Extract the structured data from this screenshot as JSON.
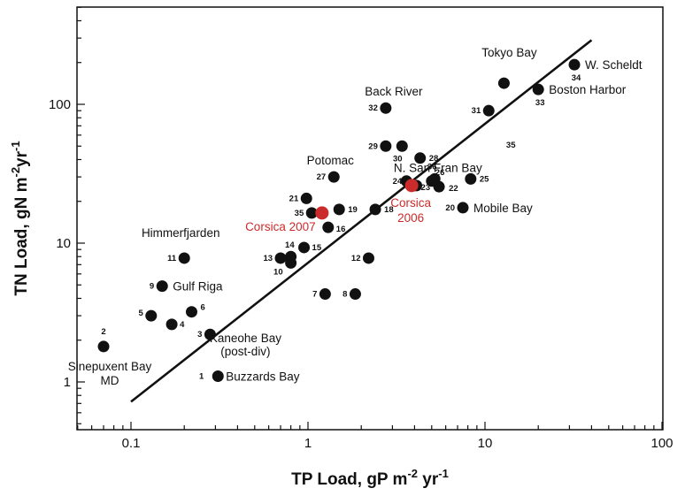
{
  "chart_data": {
    "type": "scatter",
    "xscale": "log",
    "yscale": "log",
    "xlim": [
      0.05,
      100
    ],
    "ylim": [
      0.5,
      500
    ],
    "grid": false,
    "xlabel": {
      "main": "TP Load, gP m",
      "exp1": "-2",
      "mid": " yr",
      "exp2": "-1"
    },
    "ylabel": {
      "main": "TN Load, gN m",
      "exp1": "-2",
      "mid": "yr",
      "exp2": "-1"
    },
    "x_ticks": [
      {
        "value": 0.1,
        "label": "0.1"
      },
      {
        "value": 1,
        "label": "1"
      },
      {
        "value": 10,
        "label": "10"
      },
      {
        "value": 100,
        "label": "100"
      }
    ],
    "y_ticks": [
      {
        "value": 1,
        "label": "1"
      },
      {
        "value": 10,
        "label": "10"
      },
      {
        "value": 100,
        "label": "100"
      }
    ],
    "regression_line": {
      "x": [
        0.1,
        40
      ],
      "y": [
        0.72,
        290
      ]
    },
    "points": [
      {
        "id": "1",
        "x": 0.31,
        "y": 1.1,
        "name": "Buzzards Bay"
      },
      {
        "id": "2",
        "x": 0.07,
        "y": 1.8,
        "name": "Sinepuxent Bay\nMD"
      },
      {
        "id": "3",
        "x": 0.28,
        "y": 2.2,
        "name": "Kaneohe Bay\n(post-div)"
      },
      {
        "id": "4",
        "x": 0.17,
        "y": 2.6,
        "name": ""
      },
      {
        "id": "5",
        "x": 0.13,
        "y": 3.0,
        "name": ""
      },
      {
        "id": "6",
        "x": 0.22,
        "y": 3.2,
        "name": ""
      },
      {
        "id": "7",
        "x": 1.25,
        "y": 4.3,
        "name": ""
      },
      {
        "id": "8",
        "x": 1.85,
        "y": 4.3,
        "name": ""
      },
      {
        "id": "9",
        "x": 0.15,
        "y": 4.9,
        "name": "Gulf Riga"
      },
      {
        "id": "10",
        "x": 0.8,
        "y": 7.2,
        "name": ""
      },
      {
        "id": "11",
        "x": 0.2,
        "y": 7.8,
        "name": "Himmerfjarden"
      },
      {
        "id": "12",
        "x": 2.2,
        "y": 7.8,
        "name": ""
      },
      {
        "id": "13",
        "x": 0.7,
        "y": 7.8,
        "name": ""
      },
      {
        "id": "14",
        "x": 0.8,
        "y": 8.0,
        "name": ""
      },
      {
        "id": "15",
        "x": 0.95,
        "y": 9.3,
        "name": ""
      },
      {
        "id": "16",
        "x": 1.3,
        "y": 13,
        "name": ""
      },
      {
        "id": "18",
        "x": 2.4,
        "y": 17.5,
        "name": ""
      },
      {
        "id": "19",
        "x": 1.5,
        "y": 17.5,
        "name": ""
      },
      {
        "id": "20",
        "x": 7.5,
        "y": 18,
        "name": "Mobile Bay"
      },
      {
        "id": "21",
        "x": 0.98,
        "y": 21,
        "name": ""
      },
      {
        "id": "22",
        "x": 5.5,
        "y": 25.5,
        "name": ""
      },
      {
        "id": "23",
        "x": 4.1,
        "y": 26,
        "name": ""
      },
      {
        "id": "24",
        "x": 3.6,
        "y": 28,
        "name": ""
      },
      {
        "id": "25",
        "x": 8.3,
        "y": 29,
        "name": "N. San Fran Bay"
      },
      {
        "id": "26",
        "x": 5.0,
        "y": 28,
        "name": ""
      },
      {
        "id": "27",
        "x": 1.4,
        "y": 30,
        "name": "Potomac"
      },
      {
        "id": "28",
        "x": 4.3,
        "y": 41,
        "name": ""
      },
      {
        "id": "29",
        "x": 2.75,
        "y": 50,
        "name": ""
      },
      {
        "id": "30",
        "x": 3.4,
        "y": 50,
        "name": ""
      },
      {
        "id": "31",
        "x": 10.5,
        "y": 90,
        "name": ""
      },
      {
        "id": "32",
        "x": 2.75,
        "y": 94,
        "name": "Back River"
      },
      {
        "id": "33",
        "x": 20,
        "y": 128,
        "name": "Boston Harbor"
      },
      {
        "id": "34",
        "x": 32,
        "y": 193,
        "name": "W. Scheldt"
      },
      {
        "id": "35",
        "x": 1.05,
        "y": 16.5,
        "name": ""
      },
      {
        "id": "36",
        "x": 5.2,
        "y": 29,
        "name": ""
      },
      {
        "id": "",
        "x": 12.8,
        "y": 142,
        "name": "Tokyo Bay"
      }
    ],
    "highlighted_points": [
      {
        "x": 1.2,
        "y": 16.5,
        "name": "Corsica 2007",
        "color": "#cc2b2b"
      },
      {
        "x": 3.85,
        "y": 26,
        "name": "Corsica\n2006",
        "color": "#cc2b2b"
      }
    ],
    "floating_labels": [
      {
        "text": "35",
        "x": 14,
        "y": 51
      }
    ],
    "colors": {
      "points": "#111111",
      "highlight": "#cc2b2b",
      "line": "#111111",
      "axes": "#111111"
    }
  }
}
